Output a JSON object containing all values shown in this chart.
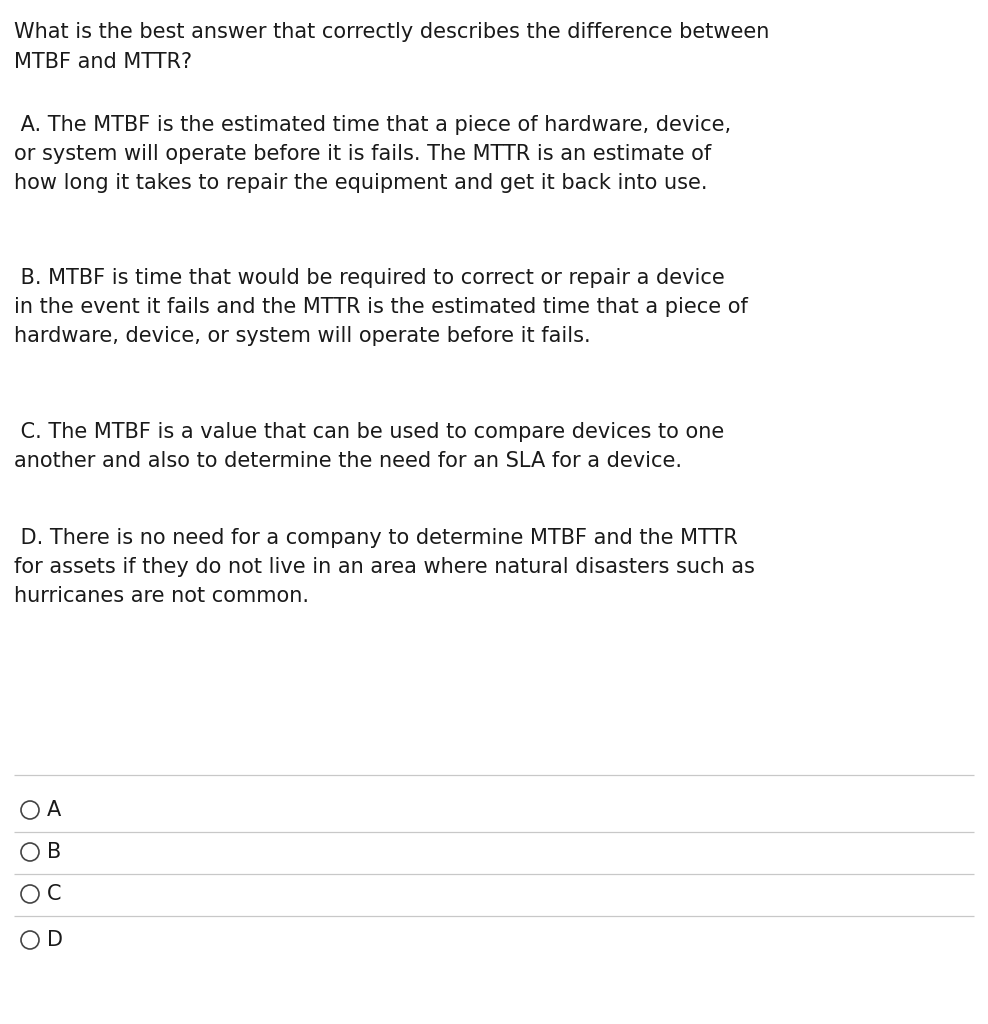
{
  "background_color": "#ffffff",
  "text_color": "#1a1a1a",
  "question_line1": "What is the best answer that correctly describes the difference between",
  "question_line2": "MTBF and MTTR?",
  "option_A": " A. The MTBF is the estimated time that a piece of hardware, device,\nor system will operate before it is fails. The MTTR is an estimate of\nhow long it takes to repair the equipment and get it back into use.",
  "option_B": " B. MTBF is time that would be required to correct or repair a device\nin the event it fails and the MTTR is the estimated time that a piece of\nhardware, device, or system will operate before it fails.",
  "option_C": " C. The MTBF is a value that can be used to compare devices to one\nanother and also to determine the need for an SLA for a device.",
  "option_D": " D. There is no need for a company to determine MTBF and the MTTR\nfor assets if they do not live in an area where natural disasters such as\nhurricanes are not common.",
  "answer_labels": [
    "A",
    "B",
    "C",
    "D"
  ],
  "fontsize": 15.0,
  "line_color": "#c8c8c8",
  "circle_color": "#444444",
  "font_family": "DejaVu Sans"
}
